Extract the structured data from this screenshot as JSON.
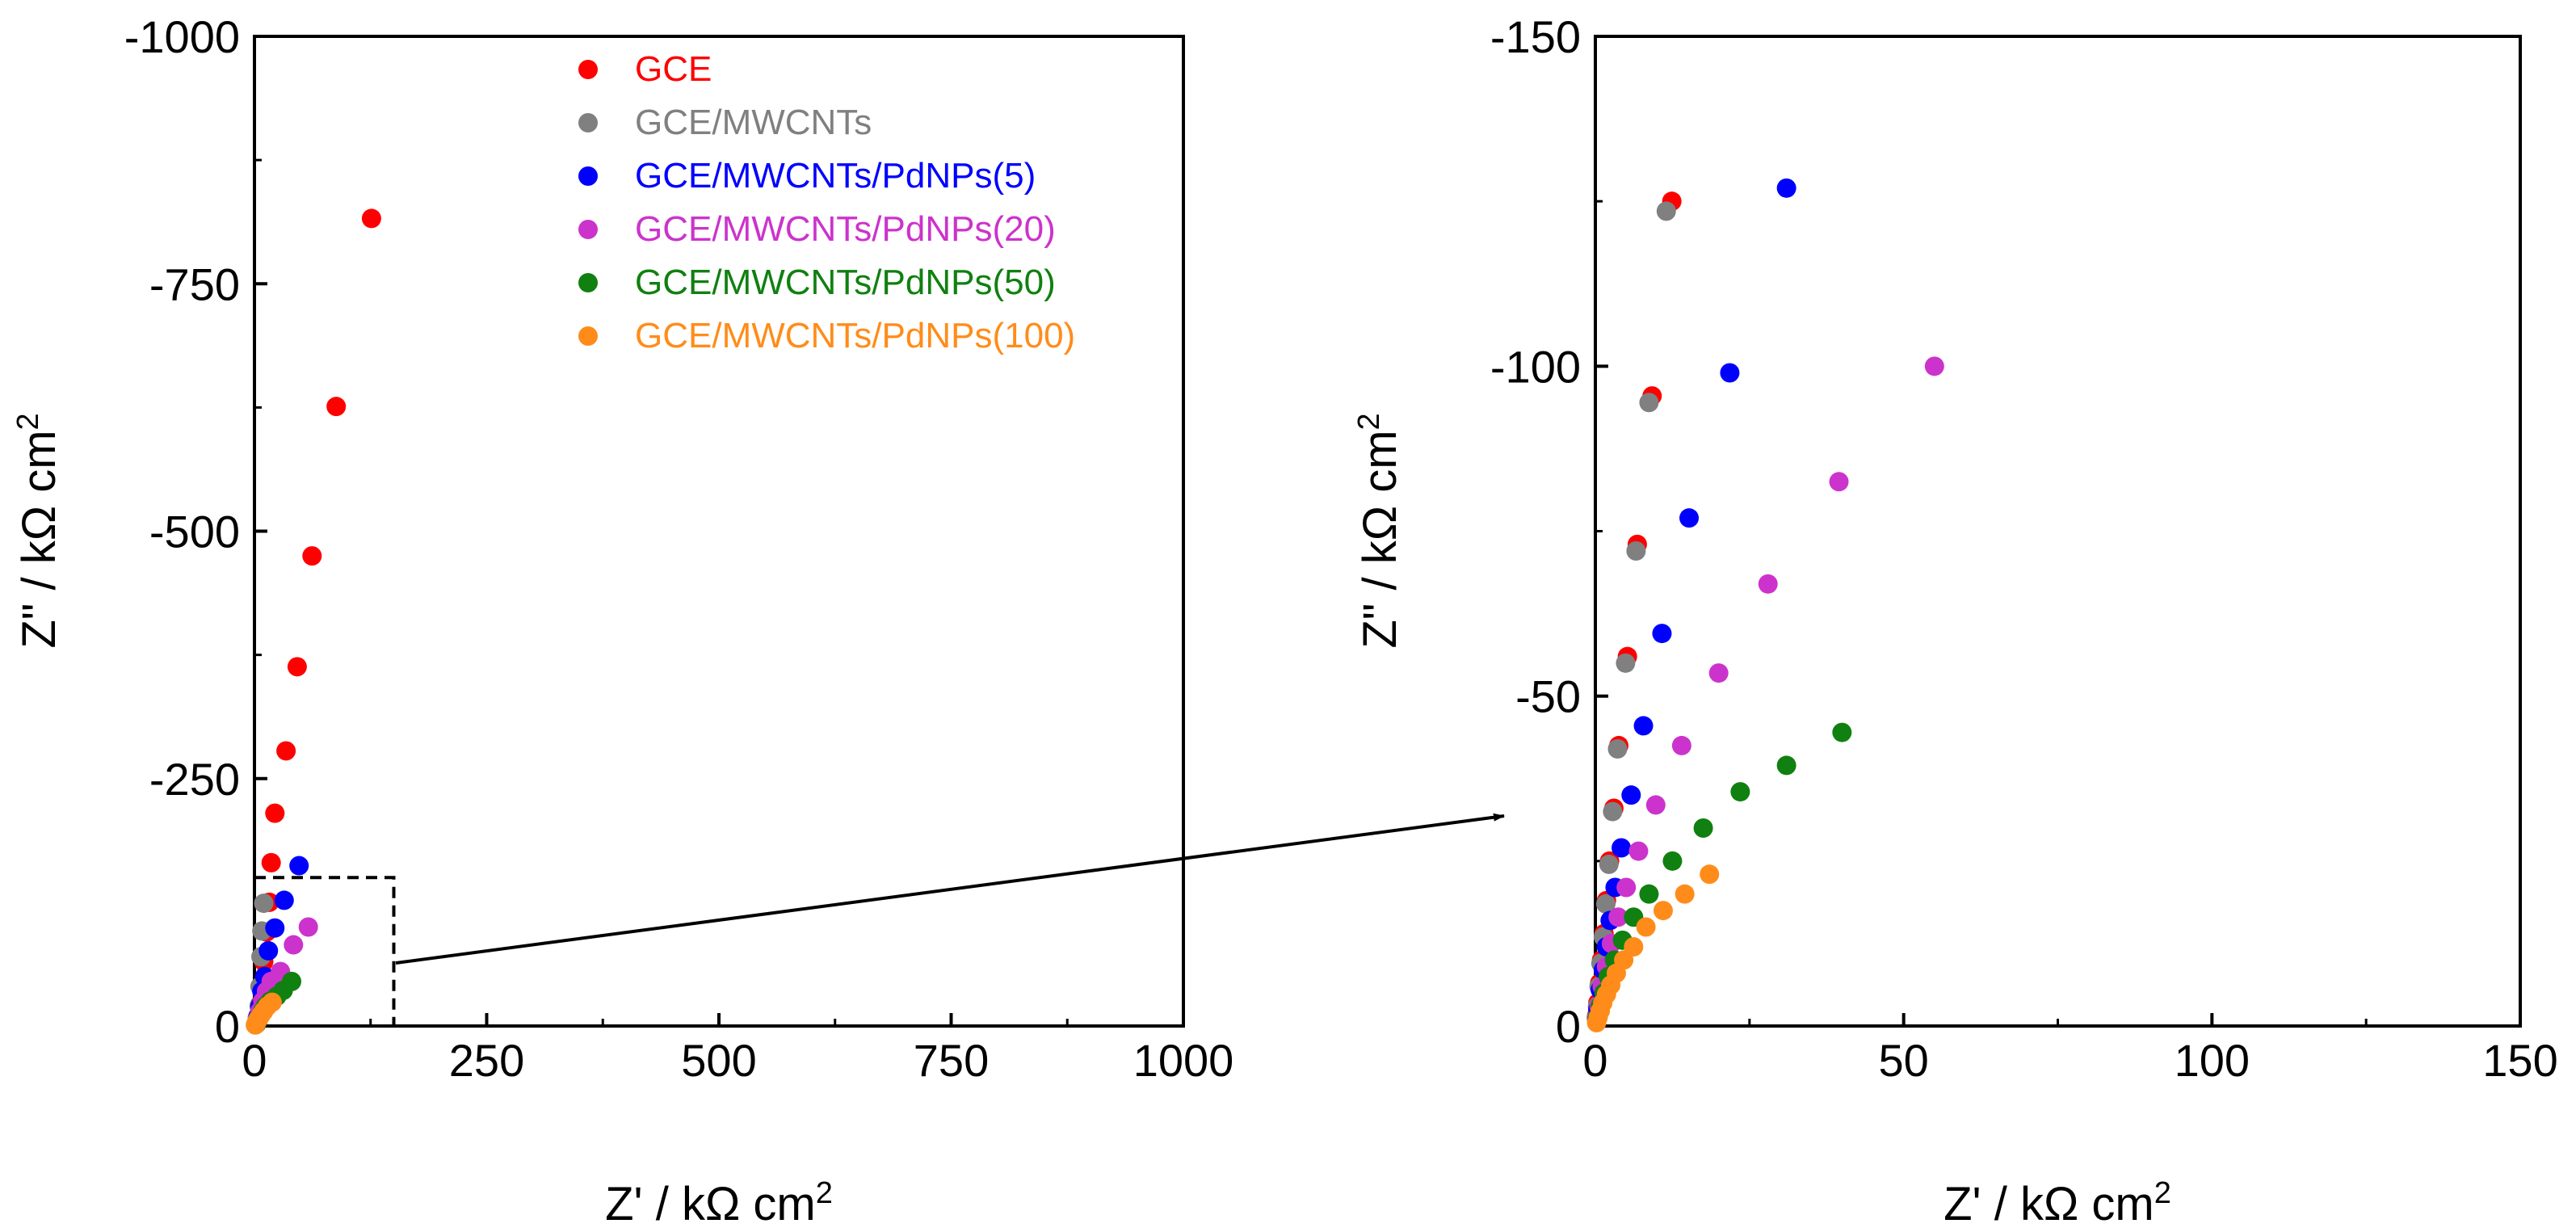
{
  "colors": {
    "GCE": "#ff0000",
    "GCE/MWCNTs": "#808080",
    "GCE/MWCNTs/PdNPs(5)": "#0000ff",
    "GCE/MWCNTs/PdNPs(20)": "#cc33cc",
    "GCE/MWCNTs/PdNPs(50)": "#108010",
    "GCE/MWCNTs/PdNPs(100)": "#ff8c1a"
  },
  "chart_data": [
    {
      "type": "scatter",
      "title": "",
      "xlabel": "Z' / kΩ cm",
      "xlabel_sup": "2",
      "ylabel": "Z\" / kΩ cm",
      "ylabel_sup": "2",
      "xlim": [
        0,
        1000
      ],
      "ylim": [
        0,
        -1000
      ],
      "xticks": [
        0,
        250,
        500,
        750,
        1000
      ],
      "yticks": [
        0,
        -250,
        -500,
        -750,
        -1000
      ],
      "legend": "top-center",
      "inset_box": {
        "x": [
          0,
          150
        ],
        "y": [
          0,
          -150
        ],
        "style": "dashed"
      },
      "series": [
        {
          "name": "GCE",
          "points": [
            [
              2,
              -2
            ],
            [
              4,
              -10
            ],
            [
              6,
              -22
            ],
            [
              8,
              -40
            ],
            [
              10,
              -65
            ],
            [
              13,
              -95
            ],
            [
              16,
              -125
            ],
            [
              18,
              -165
            ],
            [
              22,
              -215
            ],
            [
              34,
              -278
            ],
            [
              46,
              -363
            ],
            [
              62,
              -475
            ],
            [
              88,
              -626
            ],
            [
              126,
              -816
            ]
          ]
        },
        {
          "name": "GCE/MWCNTs",
          "points": [
            [
              2,
              -2
            ],
            [
              3,
              -8
            ],
            [
              5,
              -20
            ],
            [
              6,
              -40
            ],
            [
              7,
              -70
            ],
            [
              8,
              -96
            ],
            [
              10,
              -124
            ]
          ]
        },
        {
          "name": "GCE/MWCNTs/PdNPs(5)",
          "points": [
            [
              2,
              -2
            ],
            [
              4,
              -10
            ],
            [
              6,
              -20
            ],
            [
              8,
              -35
            ],
            [
              11,
              -50
            ],
            [
              15,
              -76
            ],
            [
              22,
              -99
            ],
            [
              32,
              -127
            ],
            [
              48,
              -162
            ]
          ]
        },
        {
          "name": "GCE/MWCNTs/PdNPs(20)",
          "points": [
            [
              2,
              -2
            ],
            [
              4,
              -8
            ],
            [
              6,
              -15
            ],
            [
              9,
              -25
            ],
            [
              13,
              -35
            ],
            [
              18,
              -45
            ],
            [
              28,
              -55
            ],
            [
              42,
              -82
            ],
            [
              58,
              -100
            ]
          ]
        },
        {
          "name": "GCE/MWCNTs/PdNPs(50)",
          "points": [
            [
              2,
              -2
            ],
            [
              4,
              -6
            ],
            [
              6,
              -10
            ],
            [
              9,
              -15
            ],
            [
              12,
              -20
            ],
            [
              17,
              -25
            ],
            [
              24,
              -30
            ],
            [
              31,
              -36
            ],
            [
              40,
              -45
            ]
          ]
        },
        {
          "name": "GCE/MWCNTs/PdNPs(100)",
          "points": [
            [
              1,
              -1
            ],
            [
              2,
              -3
            ],
            [
              3,
              -5
            ],
            [
              5,
              -8
            ],
            [
              7,
              -11
            ],
            [
              10,
              -15
            ],
            [
              14,
              -20
            ],
            [
              19,
              -24
            ]
          ]
        }
      ]
    },
    {
      "type": "scatter",
      "title": "",
      "xlabel": "Z' / kΩ cm",
      "xlabel_sup": "2",
      "ylabel": "Z\" / kΩ cm",
      "ylabel_sup": "2",
      "xlim": [
        0,
        150
      ],
      "ylim": [
        0,
        -150
      ],
      "xticks": [
        0,
        50,
        100,
        150
      ],
      "yticks": [
        0,
        -50,
        -100,
        -150
      ],
      "series": [
        {
          "name": "GCE",
          "points": [
            [
              12.4,
              -125
            ],
            [
              9.2,
              -95.5
            ],
            [
              6.8,
              -73
            ],
            [
              5.2,
              -56
            ],
            [
              3.8,
              -42.5
            ],
            [
              3,
              -33
            ],
            [
              2.3,
              -25
            ],
            [
              1.8,
              -19
            ],
            [
              1.4,
              -14
            ],
            [
              1,
              -10
            ],
            [
              0.7,
              -6.5
            ],
            [
              0.4,
              -3.5
            ],
            [
              0.2,
              -1.5
            ]
          ]
        },
        {
          "name": "GCE/MWCNTs",
          "points": [
            [
              11.5,
              -123.5
            ],
            [
              8.7,
              -94.5
            ],
            [
              6.6,
              -72
            ],
            [
              4.9,
              -55
            ],
            [
              3.6,
              -42
            ],
            [
              2.8,
              -32.5
            ],
            [
              2.2,
              -24.5
            ],
            [
              1.7,
              -18.5
            ],
            [
              1.3,
              -13.5
            ],
            [
              0.9,
              -9.5
            ],
            [
              0.6,
              -6
            ],
            [
              0.35,
              -3
            ],
            [
              0.15,
              -1.2
            ]
          ]
        },
        {
          "name": "GCE/MWCNTs/PdNPs(5)",
          "points": [
            [
              31,
              -127
            ],
            [
              21.8,
              -99
            ],
            [
              15.2,
              -77
            ],
            [
              10.8,
              -59.5
            ],
            [
              7.8,
              -45.5
            ],
            [
              5.8,
              -35
            ],
            [
              4.2,
              -27
            ],
            [
              3.2,
              -21
            ],
            [
              2.4,
              -16
            ],
            [
              1.8,
              -12
            ],
            [
              1.3,
              -8.5
            ],
            [
              0.8,
              -5.5
            ],
            [
              0.4,
              -2.5
            ]
          ]
        },
        {
          "name": "GCE/MWCNTs/PdNPs(20)",
          "points": [
            [
              55,
              -100
            ],
            [
              39.5,
              -82.5
            ],
            [
              28,
              -67
            ],
            [
              20,
              -53.5
            ],
            [
              14,
              -42.5
            ],
            [
              9.8,
              -33.5
            ],
            [
              7,
              -26.5
            ],
            [
              5,
              -21
            ],
            [
              3.7,
              -16.5
            ],
            [
              2.6,
              -12.5
            ],
            [
              1.8,
              -9
            ],
            [
              1.1,
              -6
            ],
            [
              0.6,
              -3
            ],
            [
              0.25,
              -1.2
            ]
          ]
        },
        {
          "name": "GCE/MWCNTs/PdNPs(50)",
          "points": [
            [
              40,
              -44.5
            ],
            [
              31,
              -39.5
            ],
            [
              23.5,
              -35.5
            ],
            [
              17.5,
              -30
            ],
            [
              12.5,
              -25
            ],
            [
              8.7,
              -20
            ],
            [
              6.2,
              -16.5
            ],
            [
              4.4,
              -13
            ],
            [
              3.1,
              -10
            ],
            [
              2.1,
              -7.5
            ],
            [
              1.4,
              -5
            ],
            [
              0.8,
              -3
            ],
            [
              0.3,
              -1.2
            ]
          ]
        },
        {
          "name": "GCE/MWCNTs/PdNPs(100)",
          "points": [
            [
              18.5,
              -23
            ],
            [
              14.5,
              -20
            ],
            [
              11,
              -17.5
            ],
            [
              8.2,
              -15
            ],
            [
              6.2,
              -12
            ],
            [
              4.6,
              -10
            ],
            [
              3.4,
              -8
            ],
            [
              2.5,
              -6.2
            ],
            [
              1.8,
              -4.8
            ],
            [
              1.2,
              -3.5
            ],
            [
              0.8,
              -2.3
            ],
            [
              0.45,
              -1.3
            ],
            [
              0.2,
              -0.5
            ]
          ]
        }
      ]
    }
  ]
}
